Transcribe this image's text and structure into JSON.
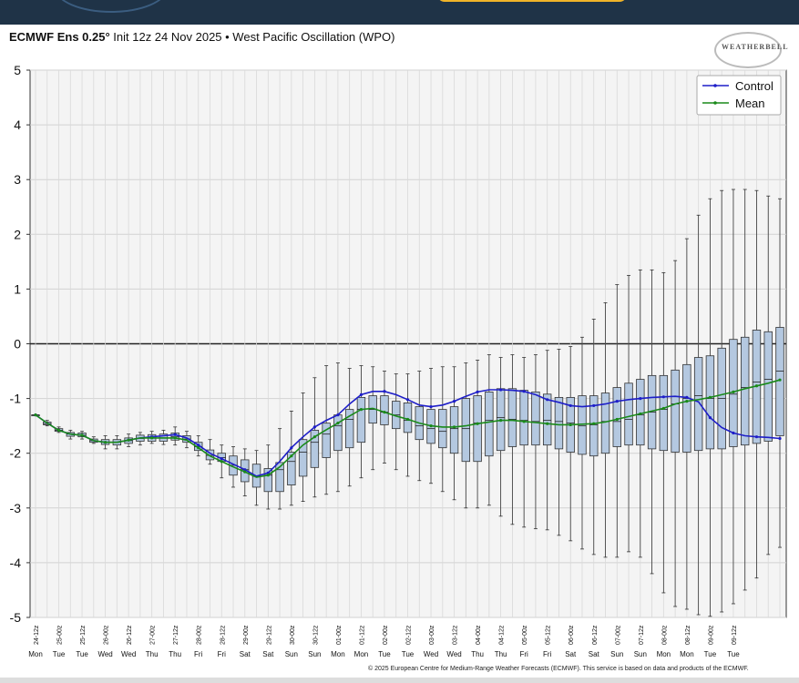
{
  "header": {
    "title_bold": "ECMWF Ens 0.25°",
    "title_rest": " Init 12z 24 Nov 2025 • West Pacific Oscillation (WPO)"
  },
  "logo_text": "WEATHERBELL",
  "footer": "© 2025 European Centre for Medium-Range Weather Forecasts (ECMWF). This service is based on data and products of the ECMWF.",
  "colors": {
    "control": "#1e1ec8",
    "mean": "#1a8a1a",
    "box_fill": "#b4c8e0",
    "plot_bg": "#f4f4f4"
  },
  "chart_data": {
    "type": "box",
    "title": "",
    "ylim": [
      -5,
      5
    ],
    "yticks": [
      5,
      4,
      3,
      2,
      1,
      0,
      -1,
      -2,
      -3,
      -4,
      -5
    ],
    "grid": true,
    "legend_position": "top-right",
    "x_labels": [
      "24-12z",
      "25-00z",
      "25-12z",
      "26-00z",
      "26-12z",
      "27-00z",
      "27-12z",
      "28-00z",
      "28-12z",
      "29-00z",
      "29-12z",
      "30-00z",
      "30-12z",
      "01-00z",
      "01-12z",
      "02-00z",
      "02-12z",
      "03-00z",
      "03-12z",
      "04-00z",
      "04-12z",
      "05-00z",
      "05-12z",
      "06-00z",
      "06-12z",
      "07-00z",
      "07-12z",
      "08-00z",
      "08-12z",
      "09-00z",
      "09-12z"
    ],
    "day_labels": [
      "Mon",
      "Tue",
      "Tue",
      "Wed",
      "Wed",
      "Thu",
      "Thu",
      "Fri",
      "Fri",
      "Sat",
      "Sat",
      "Sun",
      "Sun",
      "Mon",
      "Mon",
      "Tue",
      "Tue",
      "Wed",
      "Wed",
      "Thu",
      "Thu",
      "Fri",
      "Fri",
      "Sat",
      "Sat",
      "Sun",
      "Sun",
      "Mon",
      "Mon",
      "Tue",
      "Tue"
    ],
    "series": [
      {
        "name": "Control",
        "values": [
          -1.3,
          -1.45,
          -1.58,
          -1.65,
          -1.67,
          -1.77,
          -1.8,
          -1.8,
          -1.76,
          -1.72,
          -1.7,
          -1.68,
          -1.66,
          -1.72,
          -1.85,
          -2.0,
          -2.1,
          -2.2,
          -2.3,
          -2.42,
          -2.36,
          -2.15,
          -1.9,
          -1.7,
          -1.52,
          -1.4,
          -1.3,
          -1.1,
          -0.93,
          -0.87,
          -0.87,
          -0.93,
          -1.02,
          -1.12,
          -1.15,
          -1.12,
          -1.05,
          -0.96,
          -0.88,
          -0.84,
          -0.84,
          -0.85,
          -0.87,
          -0.93,
          -1.02,
          -1.07,
          -1.13,
          -1.15,
          -1.13,
          -1.1,
          -1.05,
          -1.02,
          -1.0,
          -0.98,
          -0.97,
          -0.96,
          -0.98,
          -1.06,
          -1.35,
          -1.53,
          -1.63,
          -1.68,
          -1.7,
          -1.71,
          -1.73
        ]
      },
      {
        "name": "Mean",
        "values": [
          -1.3,
          -1.45,
          -1.58,
          -1.65,
          -1.67,
          -1.77,
          -1.8,
          -1.8,
          -1.76,
          -1.72,
          -1.72,
          -1.72,
          -1.72,
          -1.76,
          -1.9,
          -2.05,
          -2.15,
          -2.25,
          -2.34,
          -2.44,
          -2.4,
          -2.25,
          -2.05,
          -1.85,
          -1.7,
          -1.57,
          -1.45,
          -1.32,
          -1.2,
          -1.18,
          -1.25,
          -1.32,
          -1.38,
          -1.45,
          -1.5,
          -1.52,
          -1.52,
          -1.5,
          -1.46,
          -1.43,
          -1.4,
          -1.4,
          -1.42,
          -1.44,
          -1.46,
          -1.48,
          -1.48,
          -1.47,
          -1.46,
          -1.43,
          -1.38,
          -1.33,
          -1.28,
          -1.23,
          -1.18,
          -1.1,
          -1.05,
          -1.02,
          -0.98,
          -0.93,
          -0.88,
          -0.82,
          -0.77,
          -0.72,
          -0.66
        ]
      }
    ],
    "boxes": [
      {
        "min": -1.3,
        "q1": -1.3,
        "median": -1.3,
        "q3": -1.3,
        "max": -1.3
      },
      {
        "min": -1.5,
        "q1": -1.48,
        "median": -1.46,
        "q3": -1.43,
        "max": -1.4
      },
      {
        "min": -1.62,
        "q1": -1.6,
        "median": -1.58,
        "q3": -1.55,
        "max": -1.52
      },
      {
        "min": -1.74,
        "q1": -1.69,
        "median": -1.65,
        "q3": -1.62,
        "max": -1.58
      },
      {
        "min": -1.74,
        "q1": -1.7,
        "median": -1.67,
        "q3": -1.63,
        "max": -1.6
      },
      {
        "min": -1.82,
        "q1": -1.8,
        "median": -1.77,
        "q3": -1.74,
        "max": -1.7
      },
      {
        "min": -1.92,
        "q1": -1.84,
        "median": -1.8,
        "q3": -1.75,
        "max": -1.68
      },
      {
        "min": -1.92,
        "q1": -1.85,
        "median": -1.8,
        "q3": -1.75,
        "max": -1.68
      },
      {
        "min": -1.88,
        "q1": -1.82,
        "median": -1.77,
        "q3": -1.72,
        "max": -1.65
      },
      {
        "min": -1.85,
        "q1": -1.78,
        "median": -1.73,
        "q3": -1.67,
        "max": -1.62
      },
      {
        "min": -1.82,
        "q1": -1.78,
        "median": -1.72,
        "q3": -1.66,
        "max": -1.6
      },
      {
        "min": -1.84,
        "q1": -1.78,
        "median": -1.72,
        "q3": -1.65,
        "max": -1.58
      },
      {
        "min": -1.85,
        "q1": -1.76,
        "median": -1.7,
        "q3": -1.63,
        "max": -1.52
      },
      {
        "min": -1.9,
        "q1": -1.8,
        "median": -1.74,
        "q3": -1.68,
        "max": -1.6
      },
      {
        "min": -2.05,
        "q1": -1.95,
        "median": -1.88,
        "q3": -1.8,
        "max": -1.68
      },
      {
        "min": -2.2,
        "q1": -2.12,
        "median": -2.04,
        "q3": -1.94,
        "max": -1.75
      },
      {
        "min": -2.45,
        "q1": -2.15,
        "median": -2.08,
        "q3": -2.0,
        "max": -1.85
      },
      {
        "min": -2.62,
        "q1": -2.4,
        "median": -2.22,
        "q3": -2.05,
        "max": -1.88
      },
      {
        "min": -2.78,
        "q1": -2.52,
        "median": -2.3,
        "q3": -2.12,
        "max": -1.92
      },
      {
        "min": -2.95,
        "q1": -2.62,
        "median": -2.42,
        "q3": -2.2,
        "max": -1.95
      },
      {
        "min": -3.02,
        "q1": -2.7,
        "median": -2.4,
        "q3": -2.28,
        "max": -1.85
      },
      {
        "min": -3.02,
        "q1": -2.7,
        "median": -2.3,
        "q3": -2.17,
        "max": -1.55
      },
      {
        "min": -2.95,
        "q1": -2.58,
        "median": -2.15,
        "q3": -1.98,
        "max": -1.23
      },
      {
        "min": -2.88,
        "q1": -2.42,
        "median": -1.98,
        "q3": -1.75,
        "max": -0.9
      },
      {
        "min": -2.8,
        "q1": -2.26,
        "median": -1.8,
        "q3": -1.58,
        "max": -0.62
      },
      {
        "min": -2.75,
        "q1": -2.08,
        "median": -1.65,
        "q3": -1.45,
        "max": -0.4
      },
      {
        "min": -2.7,
        "q1": -1.95,
        "median": -1.5,
        "q3": -1.3,
        "max": -0.35
      },
      {
        "min": -2.6,
        "q1": -1.9,
        "median": -1.38,
        "q3": -1.2,
        "max": -0.45
      },
      {
        "min": -2.45,
        "q1": -1.8,
        "median": -1.2,
        "q3": -0.98,
        "max": -0.4
      },
      {
        "min": -2.3,
        "q1": -1.45,
        "median": -1.2,
        "q3": -0.95,
        "max": -0.42
      },
      {
        "min": -2.18,
        "q1": -1.48,
        "median": -1.25,
        "q3": -0.95,
        "max": -0.5
      },
      {
        "min": -2.3,
        "q1": -1.55,
        "median": -1.3,
        "q3": -1.05,
        "max": -0.55
      },
      {
        "min": -2.42,
        "q1": -1.62,
        "median": -1.4,
        "q3": -1.08,
        "max": -0.55
      },
      {
        "min": -2.5,
        "q1": -1.75,
        "median": -1.5,
        "q3": -1.15,
        "max": -0.5
      },
      {
        "min": -2.55,
        "q1": -1.82,
        "median": -1.55,
        "q3": -1.2,
        "max": -0.45
      },
      {
        "min": -2.7,
        "q1": -1.9,
        "median": -1.6,
        "q3": -1.2,
        "max": -0.42
      },
      {
        "min": -2.85,
        "q1": -2.0,
        "median": -1.55,
        "q3": -1.15,
        "max": -0.42
      },
      {
        "min": -3.0,
        "q1": -2.15,
        "median": -1.55,
        "q3": -1.0,
        "max": -0.35
      },
      {
        "min": -3.0,
        "q1": -2.15,
        "median": -1.45,
        "q3": -0.95,
        "max": -0.3
      },
      {
        "min": -2.95,
        "q1": -2.05,
        "median": -1.4,
        "q3": -0.88,
        "max": -0.2
      },
      {
        "min": -3.15,
        "q1": -1.95,
        "median": -1.35,
        "q3": -0.82,
        "max": -0.25
      },
      {
        "min": -3.3,
        "q1": -1.88,
        "median": -1.38,
        "q3": -0.82,
        "max": -0.2
      },
      {
        "min": -3.35,
        "q1": -1.85,
        "median": -1.4,
        "q3": -0.85,
        "max": -0.25
      },
      {
        "min": -3.38,
        "q1": -1.85,
        "median": -1.42,
        "q3": -0.88,
        "max": -0.2
      },
      {
        "min": -3.4,
        "q1": -1.85,
        "median": -1.4,
        "q3": -0.92,
        "max": -0.12
      },
      {
        "min": -3.5,
        "q1": -1.92,
        "median": -1.42,
        "q3": -0.98,
        "max": -0.1
      },
      {
        "min": -3.6,
        "q1": -1.98,
        "median": -1.45,
        "q3": -0.98,
        "max": -0.05
      },
      {
        "min": -3.75,
        "q1": -2.02,
        "median": -1.5,
        "q3": -0.95,
        "max": 0.12
      },
      {
        "min": -3.85,
        "q1": -2.05,
        "median": -1.48,
        "q3": -0.95,
        "max": 0.45
      },
      {
        "min": -3.9,
        "q1": -2.0,
        "median": -1.42,
        "q3": -0.9,
        "max": 0.75
      },
      {
        "min": -3.9,
        "q1": -1.88,
        "median": -1.42,
        "q3": -0.8,
        "max": 1.08
      },
      {
        "min": -3.8,
        "q1": -1.85,
        "median": -1.38,
        "q3": -0.72,
        "max": 1.25
      },
      {
        "min": -3.9,
        "q1": -1.85,
        "median": -1.3,
        "q3": -0.65,
        "max": 1.35
      },
      {
        "min": -4.2,
        "q1": -1.92,
        "median": -1.25,
        "q3": -0.58,
        "max": 1.35
      },
      {
        "min": -4.55,
        "q1": -1.95,
        "median": -1.2,
        "q3": -0.58,
        "max": 1.3
      },
      {
        "min": -4.8,
        "q1": -1.98,
        "median": -1.1,
        "q3": -0.48,
        "max": 1.52
      },
      {
        "min": -4.85,
        "q1": -1.98,
        "median": -1.0,
        "q3": -0.38,
        "max": 1.92
      },
      {
        "min": -4.95,
        "q1": -1.95,
        "median": -0.95,
        "q3": -0.25,
        "max": 2.35
      },
      {
        "min": -4.98,
        "q1": -1.92,
        "median": -1.0,
        "q3": -0.22,
        "max": 2.65
      },
      {
        "min": -4.9,
        "q1": -1.92,
        "median": -1.0,
        "q3": -0.08,
        "max": 2.8
      },
      {
        "min": -4.75,
        "q1": -1.88,
        "median": -0.92,
        "q3": 0.08,
        "max": 2.82
      },
      {
        "min": -4.5,
        "q1": -1.85,
        "median": -0.8,
        "q3": 0.12,
        "max": 2.82
      },
      {
        "min": -4.28,
        "q1": -1.82,
        "median": -0.7,
        "q3": 0.25,
        "max": 2.8
      },
      {
        "min": -3.85,
        "q1": -1.78,
        "median": -0.65,
        "q3": 0.22,
        "max": 2.7
      },
      {
        "min": -3.72,
        "q1": -1.68,
        "median": -0.5,
        "q3": 0.3,
        "max": 2.65
      }
    ]
  }
}
